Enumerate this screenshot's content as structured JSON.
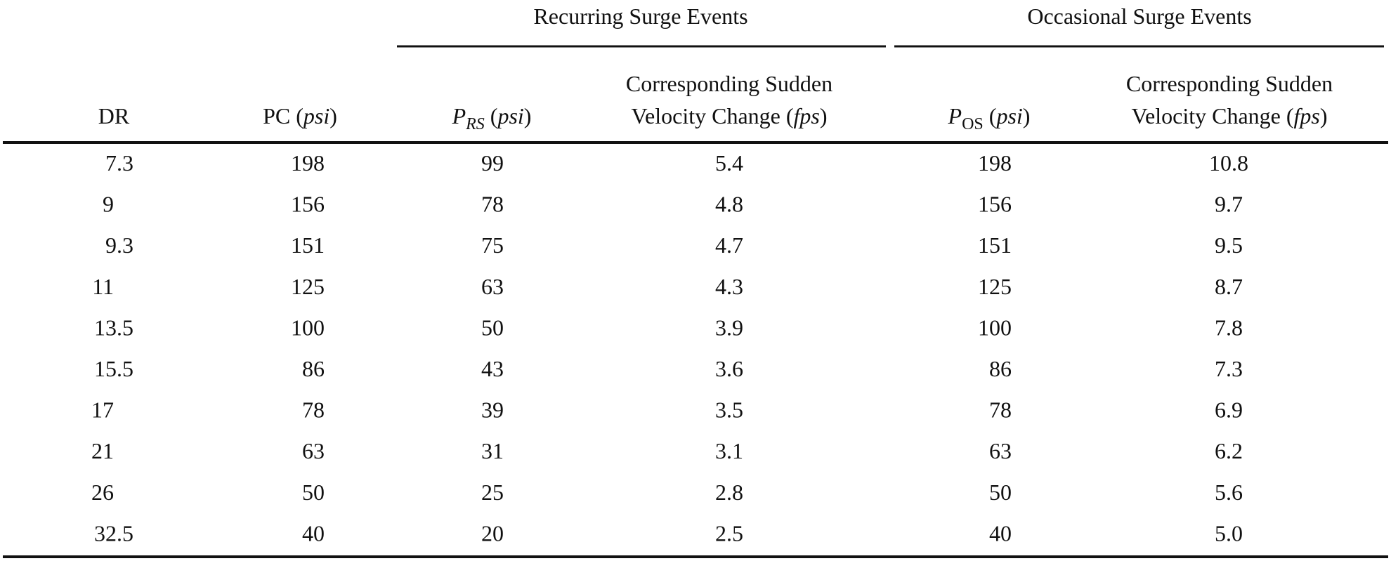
{
  "table": {
    "group_headers": [
      "Recurring Surge Events",
      "Occasional Surge Events"
    ],
    "columns": [
      [
        "DR"
      ],
      [
        "PC (",
        "psi",
        ")"
      ],
      [
        "P",
        "RS",
        " (",
        "psi",
        ")"
      ],
      [
        "Corresponding Sudden",
        "Velocity Change (",
        "fps",
        ")"
      ],
      [
        "P",
        "OS",
        " (",
        "psi",
        ")"
      ],
      [
        "Corresponding Sudden",
        "Velocity Change (",
        "fps",
        ")"
      ]
    ],
    "rows": [
      [
        "7.3",
        "198",
        "99",
        "5.4",
        "198",
        "10.8"
      ],
      [
        "9",
        "156",
        "78",
        "4.8",
        "156",
        "9.7"
      ],
      [
        "9.3",
        "151",
        "75",
        "4.7",
        "151",
        "9.5"
      ],
      [
        "11",
        "125",
        "63",
        "4.3",
        "125",
        "8.7"
      ],
      [
        "13.5",
        "100",
        "50",
        "3.9",
        "100",
        "7.8"
      ],
      [
        "15.5",
        "86",
        "43",
        "3.6",
        "86",
        "7.3"
      ],
      [
        "17",
        "78",
        "39",
        "3.5",
        "78",
        "6.9"
      ],
      [
        "21",
        "63",
        "31",
        "3.1",
        "63",
        "6.2"
      ],
      [
        "26",
        "50",
        "25",
        "2.8",
        "50",
        "5.6"
      ],
      [
        "32.5",
        "40",
        "20",
        "2.5",
        "40",
        "5.0"
      ]
    ]
  }
}
